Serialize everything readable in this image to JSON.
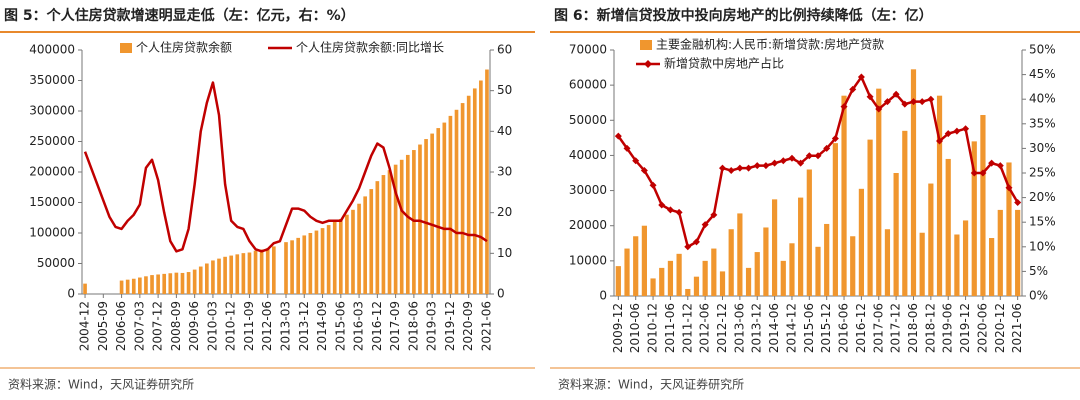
{
  "chart_data": [
    {
      "type": "combo",
      "title": "图 5：个人住房贷款增速明显走低（左：亿元，右：%）",
      "source": "资料来源：Wind，天风证券研究所",
      "categories": [
        "2004-12",
        null,
        null,
        "2005-09",
        null,
        null,
        "2006-06",
        null,
        null,
        "2007-03",
        null,
        null,
        "2007-12",
        null,
        null,
        "2008-09",
        null,
        null,
        "2009-06",
        null,
        null,
        "2010-03",
        null,
        null,
        "2010-12",
        null,
        null,
        "2011-09",
        null,
        null,
        "2012-06",
        null,
        null,
        "2013-03",
        null,
        null,
        "2013-12",
        null,
        null,
        "2014-09",
        null,
        null,
        "2015-06",
        null,
        null,
        "2016-03",
        null,
        null,
        "2016-12",
        null,
        null,
        "2017-09",
        null,
        null,
        "2018-06",
        null,
        null,
        "2019-03",
        null,
        null,
        "2019-12",
        null,
        null,
        "2020-09",
        null,
        null,
        "2021-06"
      ],
      "series": [
        {
          "name": "个人住房贷款余额",
          "color": "#f0962e",
          "type": "bar",
          "values": [
            17000,
            null,
            null,
            null,
            null,
            null,
            22000,
            23500,
            25000,
            27000,
            29000,
            31000,
            32000,
            33000,
            34000,
            35000,
            34500,
            36000,
            40000,
            45000,
            50000,
            55000,
            58000,
            61000,
            63000,
            65000,
            67000,
            68000,
            71000,
            73000,
            75000,
            78000,
            null,
            85000,
            88000,
            92000,
            96000,
            100000,
            104000,
            108000,
            113000,
            118000,
            123000,
            130000,
            138000,
            148000,
            160000,
            172000,
            185000,
            195000,
            203000,
            212000,
            220000,
            228000,
            236000,
            245000,
            254000,
            263000,
            272000,
            281000,
            292000,
            302000,
            313000,
            325000,
            337000,
            350000,
            368000
          ]
        },
        {
          "name": "个人住房贷款余额:同比增长",
          "color": "#c00000",
          "type": "line",
          "axis": "y2",
          "values": [
            35,
            31,
            27,
            23,
            19,
            16.5,
            16,
            18,
            19.5,
            22,
            31,
            33,
            28,
            20,
            13,
            10.5,
            11,
            16,
            27,
            40,
            47,
            52,
            44,
            27,
            18,
            16.5,
            16,
            13,
            11,
            10.5,
            11,
            12.5,
            13,
            17,
            21,
            21,
            20.5,
            19,
            18,
            17.5,
            18,
            18,
            18,
            20.5,
            23,
            26,
            30,
            34,
            37,
            36,
            31,
            25,
            20.5,
            19,
            18,
            18,
            17.5,
            17,
            16.5,
            16,
            16,
            15,
            15,
            14.5,
            14.5,
            14,
            13
          ]
        }
      ],
      "ylim": [
        0,
        400000
      ],
      "yticks": [
        0,
        50000,
        100000,
        150000,
        200000,
        250000,
        300000,
        350000,
        400000
      ],
      "y2lim": [
        0,
        60
      ],
      "y2ticks": [
        0,
        10,
        20,
        30,
        40,
        50,
        60
      ]
    },
    {
      "type": "combo",
      "title": "图 6：新增信贷投放中投向房地产的比例持续降低（左：亿）",
      "source": "资料来源：Wind，天风证券研究所",
      "categories": [
        "2009-12",
        null,
        "2010-06",
        null,
        "2010-12",
        null,
        "2011-06",
        null,
        "2011-12",
        null,
        "2012-06",
        null,
        "2012-12",
        null,
        "2013-06",
        null,
        "2013-12",
        null,
        "2014-06",
        null,
        "2014-12",
        null,
        "2015-06",
        null,
        "2015-12",
        null,
        "2016-06",
        null,
        "2016-12",
        null,
        "2017-06",
        null,
        "2017-12",
        null,
        "2018-06",
        null,
        "2018-12",
        null,
        "2019-06",
        null,
        "2019-12",
        null,
        "2020-06",
        null,
        "2020-12",
        null,
        "2021-06"
      ],
      "series": [
        {
          "name": "主要金融机构:人民币:新增贷款:房地产贷款",
          "color": "#f0962e",
          "type": "bar",
          "values": [
            8500,
            13500,
            17000,
            20000,
            5000,
            8000,
            10000,
            12000,
            2000,
            5500,
            10000,
            13500,
            7000,
            19000,
            23500,
            8000,
            12500,
            19500,
            27500,
            10000,
            15000,
            28000,
            36000,
            14000,
            20500,
            43500,
            57000,
            17000,
            30500,
            44500,
            59000,
            19000,
            35000,
            47000,
            64500,
            18000,
            32000,
            57000,
            39000,
            17500,
            21500,
            44000,
            51500,
            16500,
            24500,
            38000,
            24500
          ]
        },
        {
          "name": "新增贷款中房地产占比",
          "color": "#c00000",
          "type": "line",
          "axis": "y2",
          "marker": "diamond",
          "values": [
            32.5,
            30,
            27.5,
            25.5,
            22.5,
            18.5,
            17.5,
            17,
            10,
            11,
            14.5,
            16.5,
            26,
            25.5,
            26,
            26,
            26.5,
            26.5,
            27,
            27.5,
            28,
            27,
            28.5,
            28.5,
            30,
            32,
            38.5,
            42,
            44.5,
            40.5,
            38,
            39.5,
            41,
            39,
            39.5,
            39.5,
            40,
            31.5,
            33,
            33.5,
            34,
            25,
            25,
            27,
            26.5,
            22,
            19
          ]
        }
      ],
      "ylim": [
        0,
        70000
      ],
      "yticks": [
        0,
        10000,
        20000,
        30000,
        40000,
        50000,
        60000,
        70000
      ],
      "y2lim": [
        0,
        50
      ],
      "y2ticks": [
        {
          "value": 0,
          "label": "0%"
        },
        {
          "value": 5,
          "label": "5%"
        },
        {
          "value": 10,
          "label": "10%"
        },
        {
          "value": 15,
          "label": "15%"
        },
        {
          "value": 20,
          "label": "20%"
        },
        {
          "value": 25,
          "label": "25%"
        },
        {
          "value": 30,
          "label": "30%"
        },
        {
          "value": 35,
          "label": "35%"
        },
        {
          "value": 40,
          "label": "40%"
        },
        {
          "value": 45,
          "label": "45%"
        },
        {
          "value": 50,
          "label": "50%"
        }
      ]
    }
  ]
}
